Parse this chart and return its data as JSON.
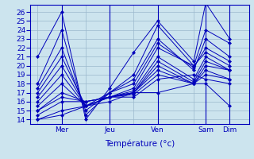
{
  "background_color": "#cce4ee",
  "plot_bg_color": "#cce4ee",
  "line_color": "#0000bb",
  "xlabel": "Température (°c)",
  "ylim": [
    13.5,
    26.8
  ],
  "yticks": [
    14,
    15,
    16,
    17,
    18,
    19,
    20,
    21,
    22,
    23,
    24,
    25,
    26
  ],
  "day_labels": [
    "Mer",
    "Jeu",
    "Ven",
    "Sam",
    "Dim"
  ],
  "day_x": [
    1,
    3,
    5,
    7,
    8
  ],
  "xlim": [
    -0.3,
    8.8
  ],
  "series": [
    [
      21.0,
      26.0,
      14.0,
      17.5,
      21.5,
      25.0,
      20.5,
      27.0,
      23.0
    ],
    [
      18.0,
      24.0,
      14.5,
      17.0,
      19.0,
      24.5,
      20.0,
      24.0,
      22.5
    ],
    [
      17.5,
      22.0,
      15.0,
      17.0,
      18.5,
      23.0,
      19.5,
      23.0,
      21.0
    ],
    [
      17.0,
      21.0,
      15.5,
      17.0,
      18.0,
      22.5,
      19.8,
      22.0,
      20.5
    ],
    [
      16.5,
      20.0,
      15.5,
      16.5,
      17.5,
      22.0,
      20.0,
      21.5,
      20.0
    ],
    [
      16.0,
      19.0,
      15.5,
      16.5,
      17.2,
      21.0,
      18.5,
      21.0,
      19.5
    ],
    [
      15.5,
      18.0,
      15.5,
      16.5,
      17.0,
      20.5,
      18.2,
      20.5,
      19.5
    ],
    [
      15.0,
      17.0,
      16.0,
      16.5,
      17.0,
      20.0,
      18.0,
      20.0,
      19.5
    ],
    [
      15.0,
      16.5,
      16.0,
      16.5,
      17.0,
      19.5,
      18.0,
      19.5,
      18.5
    ],
    [
      14.5,
      16.0,
      16.0,
      16.5,
      16.8,
      19.0,
      18.0,
      19.0,
      18.5
    ],
    [
      14.0,
      15.0,
      15.5,
      16.5,
      16.5,
      18.5,
      19.0,
      18.5,
      18.0
    ],
    [
      14.0,
      14.5,
      15.5,
      16.0,
      17.0,
      17.0,
      18.0,
      18.0,
      15.5
    ]
  ],
  "x_positions": [
    0,
    1,
    2,
    3,
    4,
    5,
    6.5,
    7,
    8
  ]
}
